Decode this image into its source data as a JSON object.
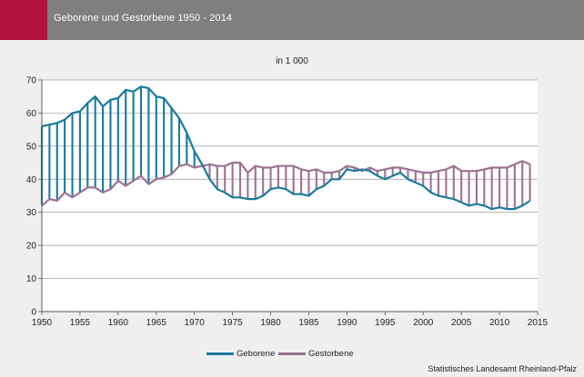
{
  "header": {
    "title": "Geborene und Gestorbene 1950 - 2014"
  },
  "source": "Statistisches Landesamt Rheinland-Pfalz",
  "colors": {
    "accent": "#b0133c",
    "header": "#7f7f7f",
    "births": "#1a7a9e",
    "deaths": "#9c7392"
  },
  "chart_data": {
    "type": "line",
    "subtitle": "in 1 000",
    "xlim": [
      1950,
      2015
    ],
    "ylim": [
      0,
      70
    ],
    "x_ticks": [
      1950,
      1955,
      1960,
      1965,
      1970,
      1975,
      1980,
      1985,
      1990,
      1995,
      2000,
      2005,
      2010,
      2015
    ],
    "y_ticks": [
      0,
      10,
      20,
      30,
      40,
      50,
      60,
      70
    ],
    "grid": true,
    "legend_position": "bottom",
    "fill_between_series": "vertical-hatch",
    "x": [
      1950,
      1951,
      1952,
      1953,
      1954,
      1955,
      1956,
      1957,
      1958,
      1959,
      1960,
      1961,
      1962,
      1963,
      1964,
      1965,
      1966,
      1967,
      1968,
      1969,
      1970,
      1971,
      1972,
      1973,
      1974,
      1975,
      1976,
      1977,
      1978,
      1979,
      1980,
      1981,
      1982,
      1983,
      1984,
      1985,
      1986,
      1987,
      1988,
      1989,
      1990,
      1991,
      1992,
      1993,
      1994,
      1995,
      1996,
      1997,
      1998,
      1999,
      2000,
      2001,
      2002,
      2003,
      2004,
      2005,
      2006,
      2007,
      2008,
      2009,
      2010,
      2011,
      2012,
      2013,
      2014
    ],
    "series": [
      {
        "name": "Geborene",
        "values": [
          56.0,
          56.5,
          57.0,
          58.0,
          60.0,
          60.5,
          63.0,
          65.0,
          62.0,
          64.0,
          64.5,
          67.0,
          66.5,
          68.0,
          67.5,
          65.0,
          64.5,
          61.5,
          58.5,
          54.0,
          48.5,
          44.5,
          40.0,
          37.0,
          36.0,
          34.5,
          34.5,
          34.0,
          34.0,
          35.0,
          37.0,
          37.5,
          37.0,
          35.5,
          35.5,
          35.0,
          37.0,
          38.0,
          40.0,
          40.0,
          43.0,
          42.5,
          43.0,
          42.5,
          41.0,
          40.0,
          41.0,
          42.0,
          40.0,
          39.0,
          38.0,
          36.0,
          35.0,
          34.5,
          34.0,
          33.0,
          32.0,
          32.5,
          32.0,
          31.0,
          31.5,
          31.0,
          31.0,
          32.0,
          33.5
        ]
      },
      {
        "name": "Gestorbene",
        "values": [
          32.0,
          34.0,
          33.5,
          36.0,
          34.5,
          36.0,
          37.5,
          37.5,
          36.0,
          37.0,
          39.5,
          38.0,
          39.5,
          41.0,
          38.5,
          40.0,
          40.5,
          41.5,
          44.0,
          44.5,
          43.5,
          44.0,
          44.5,
          44.0,
          44.0,
          45.0,
          45.0,
          42.0,
          44.0,
          43.5,
          43.5,
          44.0,
          44.0,
          44.0,
          43.0,
          42.5,
          43.0,
          42.0,
          42.0,
          42.5,
          44.0,
          43.5,
          42.5,
          43.5,
          42.5,
          43.0,
          43.5,
          43.5,
          43.0,
          42.5,
          42.0,
          42.0,
          42.5,
          43.0,
          44.0,
          42.5,
          42.5,
          42.5,
          43.0,
          43.5,
          43.5,
          43.5,
          44.5,
          45.5,
          44.5
        ]
      }
    ]
  }
}
